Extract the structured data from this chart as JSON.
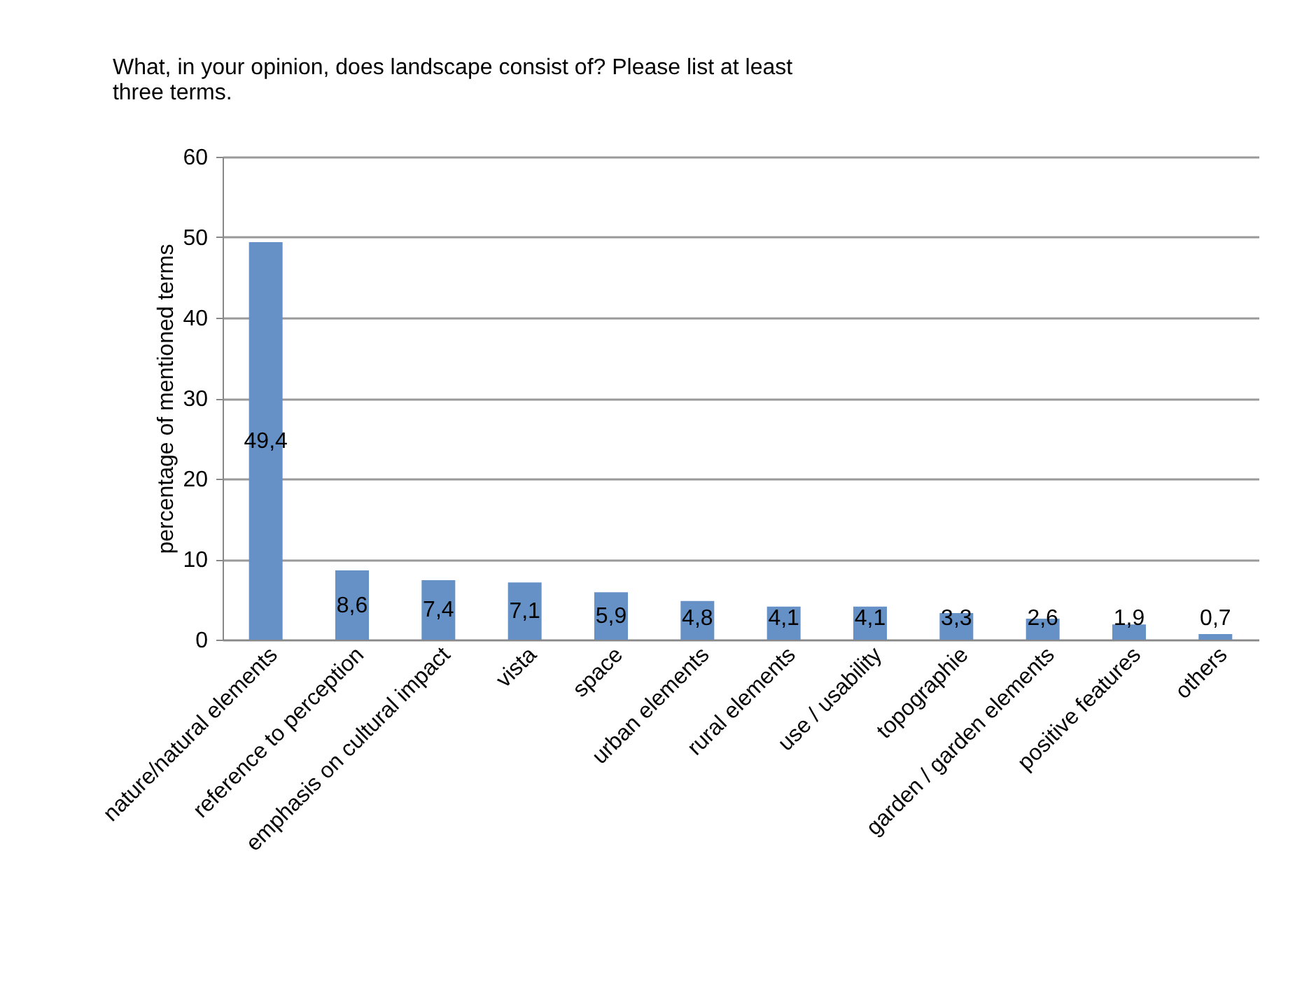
{
  "chart_data": {
    "type": "bar",
    "title": [
      "What, in your opinion, does landscape consist of? Please list at least",
      "three terms."
    ],
    "ylabel": "percentage of mentioned terms",
    "categories": [
      "nature/natural elements",
      "reference to perception",
      "emphasis on cultural impact",
      "vista",
      "space",
      "urban elements",
      "rural elements",
      "use / usability",
      "topographie",
      "garden / garden elements",
      "positive features",
      "others"
    ],
    "values": [
      49.4,
      8.6,
      7.4,
      7.1,
      5.9,
      4.8,
      4.1,
      4.1,
      3.3,
      2.6,
      1.9,
      0.7
    ],
    "value_labels": [
      "49,4",
      "8,6",
      "7,4",
      "7,1",
      "5,9",
      "4,8",
      "4,1",
      "4,1",
      "3,3",
      "2,6",
      "1,9",
      "0,7"
    ],
    "color": "#6591c7",
    "ylim": [
      0,
      60
    ],
    "yticks": [
      0,
      10,
      20,
      30,
      40,
      50,
      60
    ],
    "grid": "y"
  }
}
